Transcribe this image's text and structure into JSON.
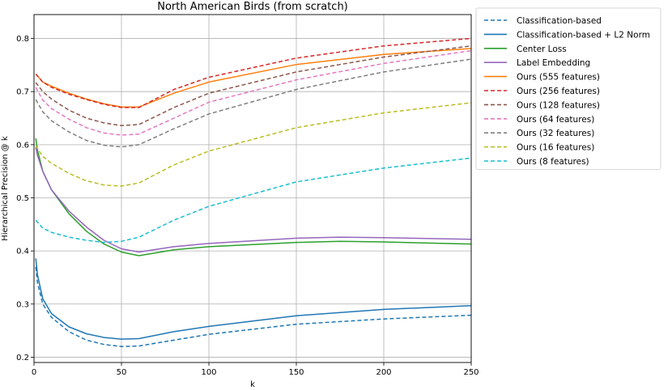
{
  "chart_data": {
    "type": "line",
    "title": "North American Birds (from scratch)",
    "xlabel": "k",
    "ylabel": "Hierarchical Precision  @ k",
    "xlim": [
      0,
      250
    ],
    "ylim": [
      0.19,
      0.845
    ],
    "xticks": [
      0,
      50,
      100,
      150,
      200,
      250
    ],
    "yticks": [
      0.2,
      0.3,
      0.4,
      0.5,
      0.6,
      0.7,
      0.8
    ],
    "grid": true,
    "legend_position": "outside-right",
    "series": [
      {
        "name": "Classification-based",
        "color": "#1f77b4",
        "dash": true,
        "x": [
          1,
          2,
          5,
          10,
          20,
          30,
          40,
          50,
          60,
          80,
          100,
          150,
          200,
          250
        ],
        "y": [
          0.37,
          0.34,
          0.3,
          0.275,
          0.248,
          0.232,
          0.224,
          0.22,
          0.221,
          0.232,
          0.243,
          0.262,
          0.272,
          0.279
        ]
      },
      {
        "name": "Classification-based + L2 Norm",
        "color": "#1f77b4",
        "dash": false,
        "x": [
          1,
          2,
          5,
          10,
          20,
          30,
          40,
          50,
          60,
          80,
          100,
          150,
          200,
          250
        ],
        "y": [
          0.386,
          0.355,
          0.31,
          0.282,
          0.257,
          0.244,
          0.237,
          0.234,
          0.235,
          0.248,
          0.258,
          0.278,
          0.29,
          0.297
        ]
      },
      {
        "name": "Center Loss",
        "color": "#2ca02c",
        "dash": false,
        "x": [
          1,
          2,
          5,
          10,
          20,
          30,
          40,
          50,
          60,
          80,
          100,
          150,
          175,
          200,
          250
        ],
        "y": [
          0.612,
          0.59,
          0.55,
          0.515,
          0.47,
          0.437,
          0.413,
          0.398,
          0.391,
          0.402,
          0.408,
          0.416,
          0.418,
          0.417,
          0.413
        ]
      },
      {
        "name": "Label Embedding",
        "color": "#9467bd",
        "dash": false,
        "x": [
          1,
          2,
          5,
          10,
          20,
          30,
          40,
          50,
          60,
          80,
          100,
          150,
          175,
          200,
          250
        ],
        "y": [
          0.595,
          0.58,
          0.55,
          0.515,
          0.475,
          0.445,
          0.42,
          0.404,
          0.398,
          0.408,
          0.414,
          0.424,
          0.426,
          0.425,
          0.422
        ]
      },
      {
        "name": "Ours (555 features)",
        "color": "#ff7f0e",
        "dash": false,
        "x": [
          1,
          5,
          10,
          20,
          30,
          40,
          50,
          60,
          80,
          100,
          150,
          200,
          250
        ],
        "y": [
          0.733,
          0.718,
          0.71,
          0.697,
          0.686,
          0.677,
          0.671,
          0.671,
          0.697,
          0.718,
          0.751,
          0.77,
          0.781
        ]
      },
      {
        "name": "Ours (256 features)",
        "color": "#d62728",
        "dash": true,
        "x": [
          1,
          5,
          10,
          20,
          30,
          40,
          50,
          60,
          80,
          100,
          150,
          200,
          250
        ],
        "y": [
          0.733,
          0.718,
          0.708,
          0.695,
          0.685,
          0.676,
          0.67,
          0.67,
          0.704,
          0.727,
          0.763,
          0.786,
          0.8
        ]
      },
      {
        "name": "Ours (128 features)",
        "color": "#8c564b",
        "dash": true,
        "x": [
          1,
          5,
          10,
          20,
          30,
          40,
          50,
          60,
          80,
          100,
          150,
          200,
          250
        ],
        "y": [
          0.717,
          0.7,
          0.686,
          0.665,
          0.65,
          0.641,
          0.636,
          0.638,
          0.67,
          0.697,
          0.737,
          0.765,
          0.786
        ]
      },
      {
        "name": "Ours (64 features)",
        "color": "#e377c2",
        "dash": true,
        "x": [
          1,
          5,
          10,
          20,
          30,
          40,
          50,
          60,
          80,
          100,
          150,
          200,
          250
        ],
        "y": [
          0.708,
          0.684,
          0.668,
          0.648,
          0.632,
          0.622,
          0.618,
          0.62,
          0.65,
          0.68,
          0.722,
          0.753,
          0.777
        ]
      },
      {
        "name": "Ours (32 features)",
        "color": "#7f7f7f",
        "dash": true,
        "x": [
          1,
          5,
          10,
          20,
          30,
          40,
          50,
          60,
          80,
          100,
          150,
          200,
          250
        ],
        "y": [
          0.685,
          0.662,
          0.645,
          0.624,
          0.608,
          0.599,
          0.596,
          0.6,
          0.63,
          0.658,
          0.704,
          0.737,
          0.761
        ]
      },
      {
        "name": "Ours (16 features)",
        "color": "#bcbd22",
        "dash": true,
        "x": [
          1,
          5,
          10,
          20,
          30,
          40,
          50,
          60,
          80,
          100,
          150,
          200,
          250
        ],
        "y": [
          0.598,
          0.578,
          0.565,
          0.546,
          0.532,
          0.524,
          0.522,
          0.528,
          0.562,
          0.588,
          0.632,
          0.66,
          0.679
        ]
      },
      {
        "name": "Ours (8 features)",
        "color": "#17becf",
        "dash": true,
        "x": [
          1,
          5,
          10,
          20,
          30,
          40,
          50,
          60,
          80,
          100,
          150,
          200,
          250
        ],
        "y": [
          0.458,
          0.443,
          0.435,
          0.426,
          0.42,
          0.416,
          0.418,
          0.426,
          0.458,
          0.484,
          0.53,
          0.556,
          0.575
        ]
      }
    ]
  }
}
